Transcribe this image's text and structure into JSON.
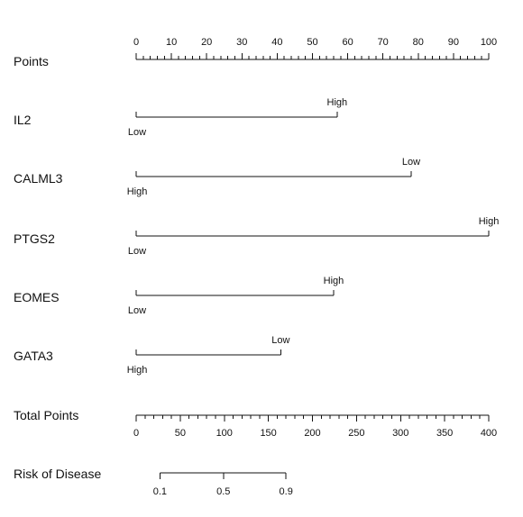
{
  "chart_data": {
    "type": "nomogram",
    "points_scale": {
      "label": "Points",
      "min": 0,
      "max": 100,
      "major_ticks": [
        0,
        10,
        20,
        30,
        40,
        50,
        60,
        70,
        80,
        90,
        100
      ],
      "minor_step": 2
    },
    "variables": [
      {
        "name": "IL2",
        "levels": [
          {
            "label": "Low",
            "points": 0
          },
          {
            "label": "High",
            "points": 57
          }
        ]
      },
      {
        "name": "CALML3",
        "levels": [
          {
            "label": "High",
            "points": 0
          },
          {
            "label": "Low",
            "points": 78
          }
        ]
      },
      {
        "name": "PTGS2",
        "levels": [
          {
            "label": "Low",
            "points": 0
          },
          {
            "label": "High",
            "points": 100
          }
        ]
      },
      {
        "name": "EOMES",
        "levels": [
          {
            "label": "Low",
            "points": 0
          },
          {
            "label": "High",
            "points": 56
          }
        ]
      },
      {
        "name": "GATA3",
        "levels": [
          {
            "label": "High",
            "points": 0
          },
          {
            "label": "Low",
            "points": 41
          }
        ]
      }
    ],
    "total_points_scale": {
      "label": "Total Points",
      "min": 0,
      "max": 400,
      "major_ticks": [
        0,
        50,
        100,
        150,
        200,
        250,
        300,
        350,
        400
      ],
      "minor_step": 10
    },
    "risk_scale": {
      "label": "Risk of Disease",
      "ticks": [
        {
          "label": "0.1",
          "total_points": 27
        },
        {
          "label": "0.5",
          "total_points": 99
        },
        {
          "label": "0.9",
          "total_points": 170
        }
      ]
    }
  }
}
